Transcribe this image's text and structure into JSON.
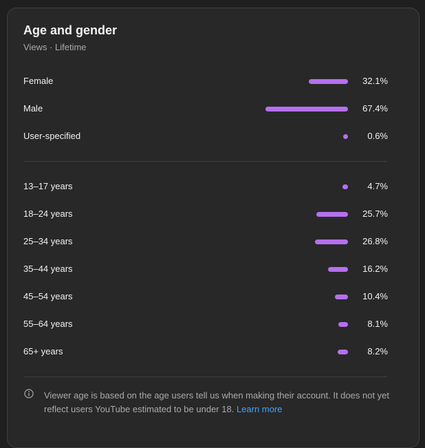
{
  "card": {
    "title": "Age and gender",
    "subtitle": "Views · Lifetime",
    "bar_color": "#b570ee",
    "gender": {
      "labels": [
        "Female",
        "Male",
        "User-specified"
      ],
      "values": [
        32.1,
        67.4,
        0.6
      ],
      "value_labels": [
        "32.1%",
        "67.4%",
        "0.6%"
      ]
    },
    "age": {
      "labels": [
        "13–17 years",
        "18–24 years",
        "25–34 years",
        "35–44 years",
        "45–54 years",
        "55–64 years",
        "65+ years"
      ],
      "values": [
        4.7,
        25.7,
        26.8,
        16.2,
        10.4,
        8.1,
        8.2
      ],
      "value_labels": [
        "4.7%",
        "25.7%",
        "26.8%",
        "16.2%",
        "10.4%",
        "8.1%",
        "8.2%"
      ]
    },
    "footnote": {
      "text": "Viewer age is based on the age users tell us when making their account. It does not yet reflect users YouTube estimated to be under 18.",
      "link": "Learn more"
    }
  }
}
